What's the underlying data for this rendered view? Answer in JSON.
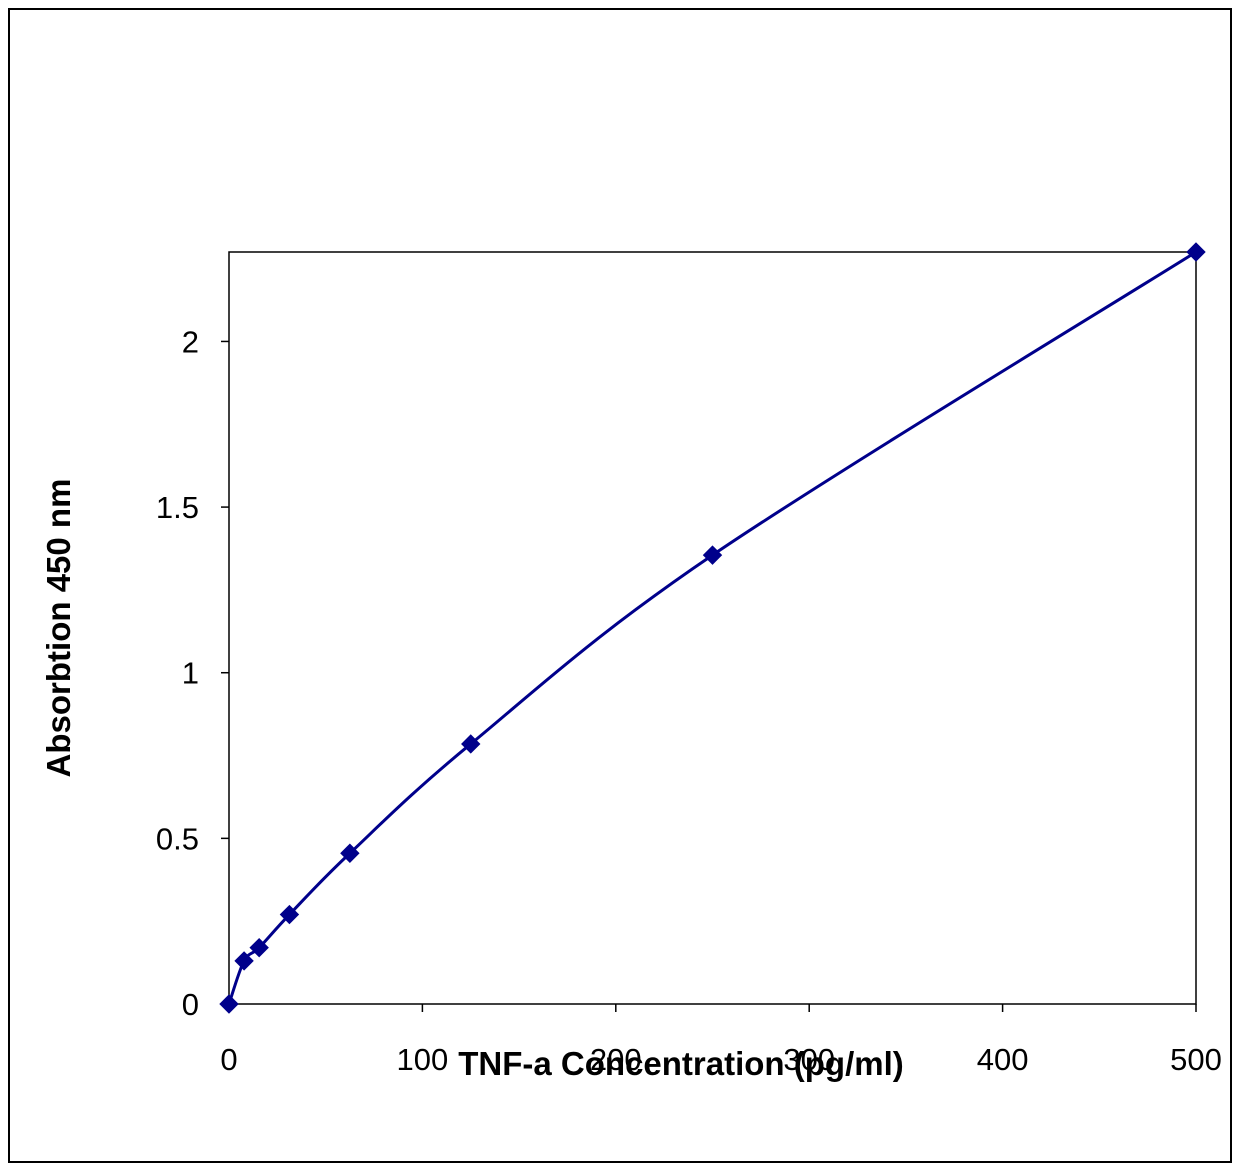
{
  "chart_data": {
    "type": "scatter",
    "title": "",
    "xlabel": "TNF-a Concentration (pg/ml)",
    "ylabel": "Absorbtion 450 nm",
    "xlim": [
      0,
      500
    ],
    "ylim": [
      0,
      2.27
    ],
    "x_ticks": [
      "0",
      "100",
      "200",
      "300",
      "400",
      "500"
    ],
    "y_ticks": [
      "0",
      "0.5",
      "1",
      "1.5",
      "2"
    ],
    "grid": false,
    "legend": "none",
    "line": "smooth",
    "marker": "diamond",
    "series": [
      {
        "x": [
          0,
          7.8,
          15.6,
          31.25,
          62.5,
          125,
          250,
          500
        ],
        "y": [
          0.0,
          0.13,
          0.17,
          0.27,
          0.455,
          0.785,
          1.355,
          2.27
        ],
        "color": "#00008b"
      }
    ]
  }
}
